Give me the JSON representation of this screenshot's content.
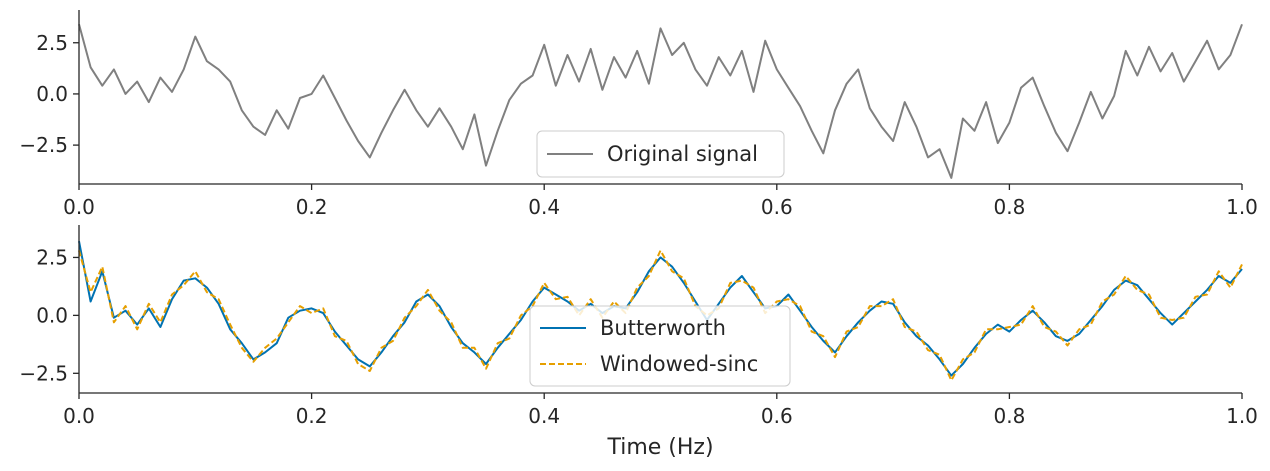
{
  "chart_data": [
    {
      "type": "line",
      "title": "",
      "xlabel": "",
      "ylabel": "",
      "xlim": [
        0.0,
        1.0
      ],
      "ylim": [
        -4.4,
        4.1
      ],
      "x_ticks": [
        "0.0",
        "0.2",
        "0.4",
        "0.6",
        "0.8",
        "1.0"
      ],
      "y_ticks": [
        "2.5",
        "0.0",
        "−2.5"
      ],
      "grid": false,
      "legend_position": "bottom-center",
      "series": [
        {
          "name": "Original signal",
          "color": "#808080",
          "style": "solid",
          "x": [
            0.0,
            0.01,
            0.02,
            0.03,
            0.04,
            0.05,
            0.06,
            0.07,
            0.08,
            0.09,
            0.1,
            0.11,
            0.12,
            0.13,
            0.14,
            0.15,
            0.16,
            0.17,
            0.18,
            0.19,
            0.2,
            0.21,
            0.22,
            0.23,
            0.24,
            0.25,
            0.26,
            0.27,
            0.28,
            0.29,
            0.3,
            0.31,
            0.32,
            0.33,
            0.34,
            0.35,
            0.36,
            0.37,
            0.38,
            0.39,
            0.4,
            0.41,
            0.42,
            0.43,
            0.44,
            0.45,
            0.46,
            0.47,
            0.48,
            0.49,
            0.5,
            0.51,
            0.52,
            0.53,
            0.54,
            0.55,
            0.56,
            0.57,
            0.58,
            0.59,
            0.6,
            0.61,
            0.62,
            0.63,
            0.64,
            0.65,
            0.66,
            0.67,
            0.68,
            0.69,
            0.7,
            0.71,
            0.72,
            0.73,
            0.74,
            0.75,
            0.76,
            0.77,
            0.78,
            0.79,
            0.8,
            0.81,
            0.82,
            0.83,
            0.84,
            0.85,
            0.86,
            0.87,
            0.88,
            0.89,
            0.9,
            0.91,
            0.92,
            0.93,
            0.94,
            0.95,
            0.96,
            0.97,
            0.98,
            0.99,
            1.0
          ],
          "values": [
            3.4,
            1.3,
            0.4,
            1.2,
            0.0,
            0.6,
            -0.4,
            0.8,
            0.1,
            1.2,
            2.8,
            1.6,
            1.2,
            0.6,
            -0.8,
            -1.6,
            -2.0,
            -0.8,
            -1.7,
            -0.2,
            0.0,
            0.9,
            -0.2,
            -1.3,
            -2.3,
            -3.1,
            -1.9,
            -0.8,
            0.2,
            -0.8,
            -1.6,
            -0.7,
            -1.6,
            -2.7,
            -1.0,
            -3.5,
            -1.8,
            -0.3,
            0.5,
            0.9,
            2.4,
            0.4,
            1.9,
            0.6,
            2.2,
            0.2,
            1.8,
            0.8,
            2.1,
            0.5,
            3.2,
            1.9,
            2.5,
            1.2,
            0.4,
            1.8,
            0.9,
            2.1,
            0.1,
            2.6,
            1.2,
            0.3,
            -0.6,
            -1.8,
            -2.9,
            -0.8,
            0.5,
            1.2,
            -0.7,
            -1.6,
            -2.3,
            -0.4,
            -1.6,
            -3.1,
            -2.7,
            -4.1,
            -1.2,
            -1.8,
            -0.4,
            -2.4,
            -1.4,
            0.3,
            0.8,
            -0.6,
            -1.9,
            -2.8,
            -1.4,
            0.1,
            -1.2,
            -0.1,
            2.1,
            0.9,
            2.3,
            1.1,
            2.0,
            0.6,
            1.6,
            2.6,
            1.2,
            1.9,
            3.4
          ]
        }
      ]
    },
    {
      "type": "line",
      "title": "",
      "xlabel": "Time (Hz)",
      "ylabel": "",
      "xlim": [
        0.0,
        1.0
      ],
      "ylim": [
        -3.35,
        3.9
      ],
      "x_ticks": [
        "0.0",
        "0.2",
        "0.4",
        "0.6",
        "0.8",
        "1.0"
      ],
      "y_ticks": [
        "2.5",
        "0.0",
        "−2.5"
      ],
      "grid": false,
      "legend_position": "bottom-center",
      "series": [
        {
          "name": "Butterworth",
          "color": "#0072B2",
          "style": "solid",
          "x": [
            0.0,
            0.01,
            0.02,
            0.03,
            0.04,
            0.05,
            0.06,
            0.07,
            0.08,
            0.09,
            0.1,
            0.11,
            0.12,
            0.13,
            0.14,
            0.15,
            0.16,
            0.17,
            0.18,
            0.19,
            0.2,
            0.21,
            0.22,
            0.23,
            0.24,
            0.25,
            0.26,
            0.27,
            0.28,
            0.29,
            0.3,
            0.31,
            0.32,
            0.33,
            0.34,
            0.35,
            0.36,
            0.37,
            0.38,
            0.39,
            0.4,
            0.41,
            0.42,
            0.43,
            0.44,
            0.45,
            0.46,
            0.47,
            0.48,
            0.49,
            0.5,
            0.51,
            0.52,
            0.53,
            0.54,
            0.55,
            0.56,
            0.57,
            0.58,
            0.59,
            0.6,
            0.61,
            0.62,
            0.63,
            0.64,
            0.65,
            0.66,
            0.67,
            0.68,
            0.69,
            0.7,
            0.71,
            0.72,
            0.73,
            0.74,
            0.75,
            0.76,
            0.77,
            0.78,
            0.79,
            0.8,
            0.81,
            0.82,
            0.83,
            0.84,
            0.85,
            0.86,
            0.87,
            0.88,
            0.89,
            0.9,
            0.91,
            0.92,
            0.93,
            0.94,
            0.95,
            0.96,
            0.97,
            0.98,
            0.99,
            1.0
          ],
          "values": [
            3.2,
            0.6,
            1.9,
            -0.1,
            0.2,
            -0.4,
            0.3,
            -0.5,
            0.7,
            1.5,
            1.6,
            1.2,
            0.5,
            -0.6,
            -1.2,
            -1.9,
            -1.6,
            -1.2,
            -0.1,
            0.2,
            0.3,
            0.1,
            -0.7,
            -1.3,
            -1.9,
            -2.2,
            -1.6,
            -0.9,
            -0.3,
            0.6,
            0.9,
            0.4,
            -0.5,
            -1.2,
            -1.6,
            -2.1,
            -1.4,
            -0.8,
            -0.2,
            0.6,
            1.2,
            0.9,
            0.6,
            0.2,
            0.5,
            0.1,
            0.4,
            0.3,
            1.0,
            1.9,
            2.5,
            2.1,
            1.4,
            0.6,
            -0.2,
            0.5,
            1.2,
            1.7,
            1.0,
            0.3,
            0.4,
            0.9,
            0.2,
            -0.5,
            -1.1,
            -1.6,
            -0.9,
            -0.3,
            0.2,
            0.6,
            0.5,
            -0.3,
            -0.9,
            -1.3,
            -1.9,
            -2.6,
            -2.1,
            -1.4,
            -0.8,
            -0.4,
            -0.7,
            -0.2,
            0.2,
            -0.3,
            -0.9,
            -1.1,
            -0.8,
            -0.2,
            0.4,
            1.1,
            1.5,
            1.3,
            0.7,
            0.1,
            -0.4,
            0.1,
            0.6,
            1.1,
            1.7,
            1.4,
            2.0
          ]
        },
        {
          "name": "Windowed-sinc",
          "color": "#E69F00",
          "style": "dashed",
          "x": [
            0.0,
            0.01,
            0.02,
            0.03,
            0.04,
            0.05,
            0.06,
            0.07,
            0.08,
            0.09,
            0.1,
            0.11,
            0.12,
            0.13,
            0.14,
            0.15,
            0.16,
            0.17,
            0.18,
            0.19,
            0.2,
            0.21,
            0.22,
            0.23,
            0.24,
            0.25,
            0.26,
            0.27,
            0.28,
            0.29,
            0.3,
            0.31,
            0.32,
            0.33,
            0.34,
            0.35,
            0.36,
            0.37,
            0.38,
            0.39,
            0.4,
            0.41,
            0.42,
            0.43,
            0.44,
            0.45,
            0.46,
            0.47,
            0.48,
            0.49,
            0.5,
            0.51,
            0.52,
            0.53,
            0.54,
            0.55,
            0.56,
            0.57,
            0.58,
            0.59,
            0.6,
            0.61,
            0.62,
            0.63,
            0.64,
            0.65,
            0.66,
            0.67,
            0.68,
            0.69,
            0.7,
            0.71,
            0.72,
            0.73,
            0.74,
            0.75,
            0.76,
            0.77,
            0.78,
            0.79,
            0.8,
            0.81,
            0.82,
            0.83,
            0.84,
            0.85,
            0.86,
            0.87,
            0.88,
            0.89,
            0.9,
            0.91,
            0.92,
            0.93,
            0.94,
            0.95,
            0.96,
            0.97,
            0.98,
            0.99,
            1.0
          ],
          "values": [
            2.8,
            1.0,
            2.1,
            -0.3,
            0.4,
            -0.6,
            0.5,
            -0.3,
            0.9,
            1.3,
            1.9,
            1.0,
            0.7,
            -0.4,
            -1.4,
            -2.0,
            -1.4,
            -1.0,
            -0.3,
            0.4,
            0.1,
            0.3,
            -0.9,
            -1.1,
            -2.1,
            -2.4,
            -1.4,
            -1.1,
            -0.1,
            0.4,
            1.1,
            0.2,
            -0.3,
            -1.4,
            -1.4,
            -2.3,
            -1.2,
            -1.0,
            0.0,
            0.4,
            1.4,
            0.7,
            0.8,
            0.0,
            0.7,
            -0.1,
            0.6,
            0.1,
            1.2,
            1.7,
            2.8,
            1.9,
            1.6,
            0.4,
            0.0,
            0.3,
            1.4,
            1.5,
            1.2,
            0.1,
            0.6,
            0.7,
            0.4,
            -0.7,
            -0.9,
            -1.8,
            -0.7,
            -0.5,
            0.4,
            0.4,
            0.7,
            -0.5,
            -0.7,
            -1.5,
            -1.7,
            -2.8,
            -1.9,
            -1.6,
            -0.6,
            -0.6,
            -0.5,
            -0.4,
            0.4,
            -0.5,
            -0.7,
            -1.3,
            -0.6,
            -0.4,
            0.6,
            0.9,
            1.7,
            1.1,
            0.9,
            -0.1,
            -0.2,
            -0.1,
            0.8,
            0.9,
            1.9,
            1.2,
            2.2
          ]
        }
      ]
    }
  ]
}
